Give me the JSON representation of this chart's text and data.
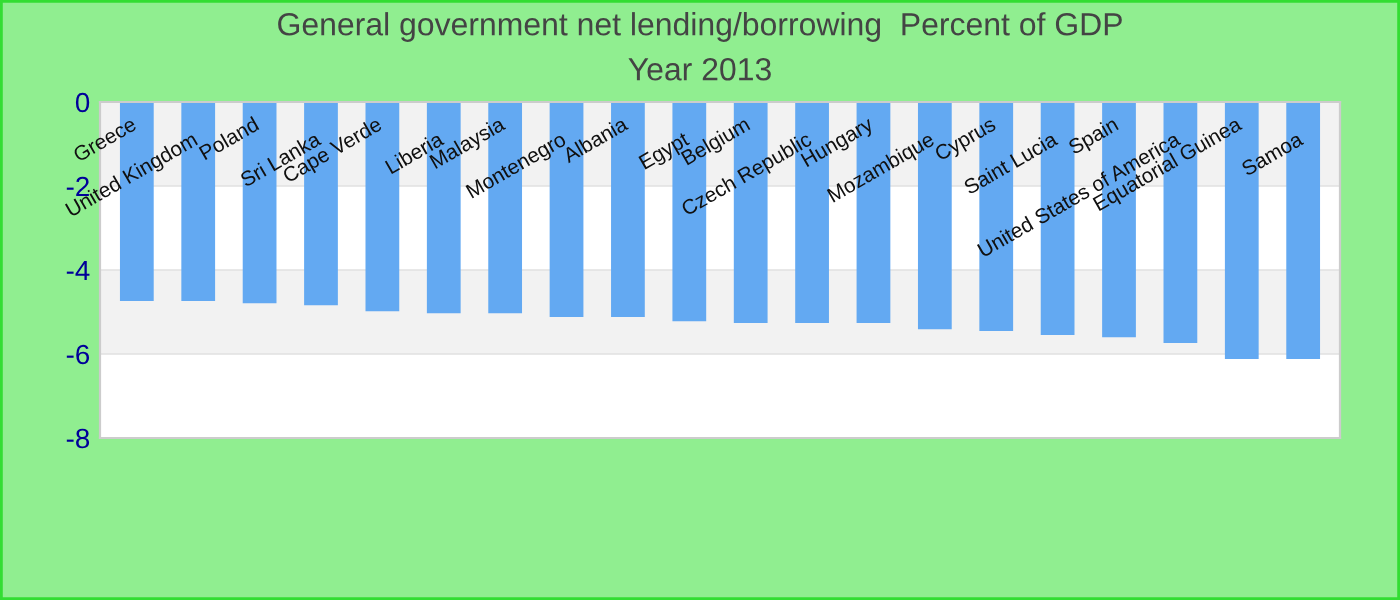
{
  "chart_data": {
    "type": "bar",
    "title": "General government net lending/borrowing  Percent of GDP",
    "subtitle": "Year 2013",
    "categories": [
      "Greece",
      "United Kingdom",
      "Poland",
      "Sri Lanka",
      "Cape Verde",
      "Liberia",
      "Malaysia",
      "Montenegro",
      "Albania",
      "Egypt",
      "Belgium",
      "Czech Republic",
      "Hungary",
      "Mozambique",
      "Cyprus",
      "Saint Lucia",
      "Spain",
      "United States of America",
      "Equatorial Guinea",
      "Samoa"
    ],
    "values": [
      -4.74,
      -4.74,
      -4.79,
      -4.84,
      -4.98,
      -5.03,
      -5.03,
      -5.12,
      -5.12,
      -5.22,
      -5.26,
      -5.26,
      -5.26,
      -5.41,
      -5.45,
      -5.55,
      -5.6,
      -5.74,
      -6.12,
      -6.12
    ],
    "color": "#63a9f2",
    "ylim": [
      -8,
      0
    ],
    "yticks": [
      -8,
      -6,
      -4,
      -2,
      0
    ],
    "grid": "y",
    "legend": false
  }
}
